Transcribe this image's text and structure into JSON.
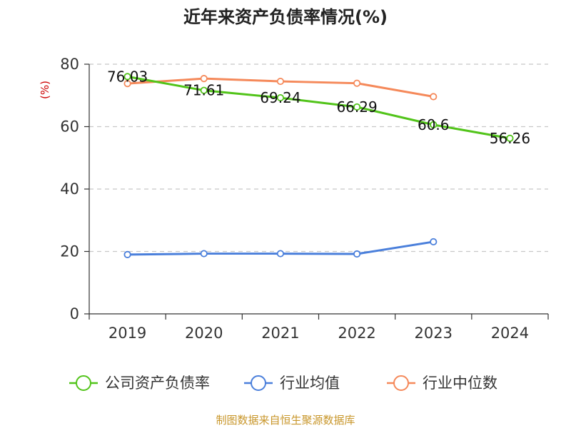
{
  "chart_data": {
    "type": "line",
    "title": "近年来资产负债率情况(%)",
    "ylabel": "(%)",
    "xlabel": "",
    "categories": [
      "2019",
      "2020",
      "2021",
      "2022",
      "2023",
      "2024"
    ],
    "ylim": [
      0,
      80
    ],
    "yticks": [
      0,
      20,
      40,
      60,
      80
    ],
    "grid": true,
    "legend_position": "bottom",
    "series": [
      {
        "name": "公司资产负债率",
        "color": "#52c41a",
        "values": [
          76.03,
          71.61,
          69.24,
          66.29,
          60.6,
          56.26
        ],
        "labels": [
          "76.03",
          "71.61",
          "69.24",
          "66.29",
          "60.6",
          "56.26"
        ],
        "show_labels": true
      },
      {
        "name": "行业均值",
        "color": "#4a7fdb",
        "values": [
          19.0,
          19.3,
          19.3,
          19.2,
          23.1,
          null
        ],
        "show_labels": false
      },
      {
        "name": "行业中位数",
        "color": "#f5895a",
        "values": [
          73.8,
          75.4,
          74.5,
          73.9,
          69.6,
          null
        ],
        "show_labels": false
      }
    ],
    "unit_color": "#cc0000",
    "source": "制图数据来自恒生聚源数据库",
    "source_color": "#c8962a"
  }
}
